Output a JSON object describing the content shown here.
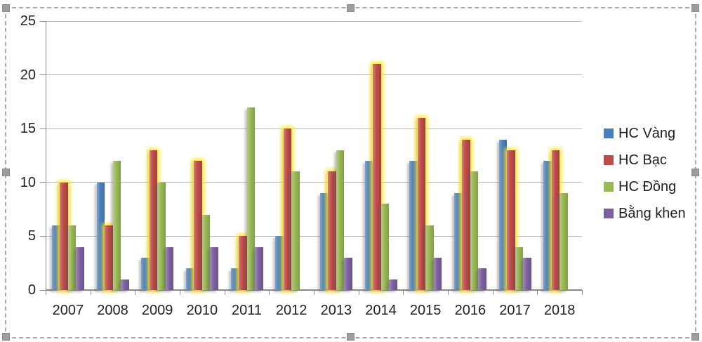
{
  "chart_data": {
    "type": "bar",
    "title": "",
    "categories": [
      "2007",
      "2008",
      "2009",
      "2010",
      "2011",
      "2012",
      "2013",
      "2014",
      "2015",
      "2016",
      "2017",
      "2018"
    ],
    "series": [
      {
        "name": "HC Vàng",
        "color": "#4a7ebb",
        "glow": false,
        "values": [
          6,
          10,
          3,
          2,
          2,
          5,
          9,
          12,
          12,
          9,
          14,
          12
        ]
      },
      {
        "name": "HC Bạc",
        "color": "#be4b48",
        "glow": true,
        "values": [
          10,
          6,
          13,
          12,
          5,
          15,
          11,
          21,
          16,
          14,
          13,
          13
        ]
      },
      {
        "name": "HC Đồng",
        "color": "#98b954",
        "glow": false,
        "values": [
          6,
          12,
          10,
          7,
          17,
          11,
          13,
          8,
          6,
          11,
          4,
          9
        ]
      },
      {
        "name": "Bằng khen",
        "color": "#7d60a0",
        "glow": false,
        "values": [
          4,
          1,
          4,
          4,
          4,
          0,
          3,
          1,
          3,
          2,
          3,
          0
        ]
      }
    ],
    "ylim": [
      0,
      25
    ],
    "yticks": [
      0,
      5,
      10,
      15,
      20,
      25
    ],
    "xlabel": "",
    "ylabel": "",
    "grid": true,
    "legend_position": "right",
    "selection": {
      "state": "chart selected",
      "handle_count": 8
    }
  }
}
